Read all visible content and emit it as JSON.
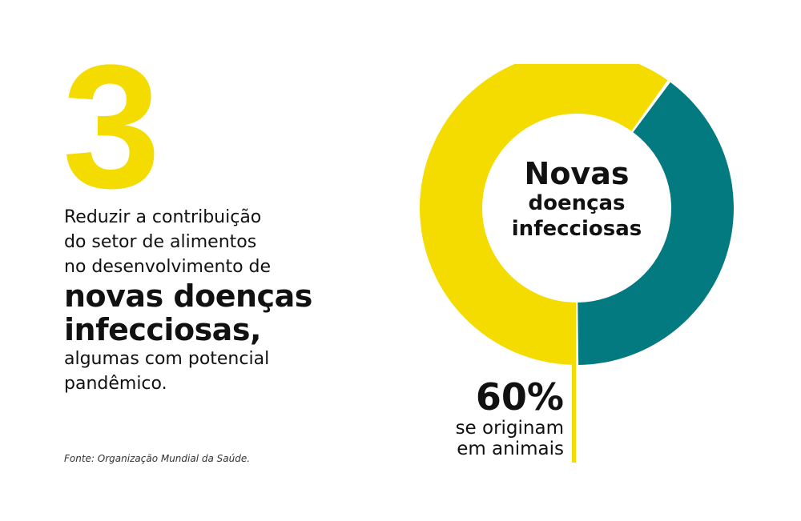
{
  "headline": {
    "number": "3"
  },
  "description": {
    "line1": "Reduzir a contribuição",
    "line2": "do setor de alimentos",
    "line3": "no desenvolvimento de",
    "bold1": "novas doenças",
    "bold2": "infecciosas,",
    "line4": "algumas com potencial",
    "line5": "pandêmico."
  },
  "source": "Fonte: Organização  Mundial da Saúde.",
  "chart_data": {
    "type": "pie",
    "title": "Novas doenças infecciosas",
    "center_label": {
      "line1": "Novas",
      "line2": "doenças",
      "line3": "infecciosas"
    },
    "slices": [
      {
        "value": 60,
        "color": "#f5dc00"
      },
      {
        "value": 40,
        "color": "#037a80"
      }
    ],
    "annotation": {
      "value": "60%",
      "line1": "se originam",
      "line2": "em animais"
    }
  }
}
